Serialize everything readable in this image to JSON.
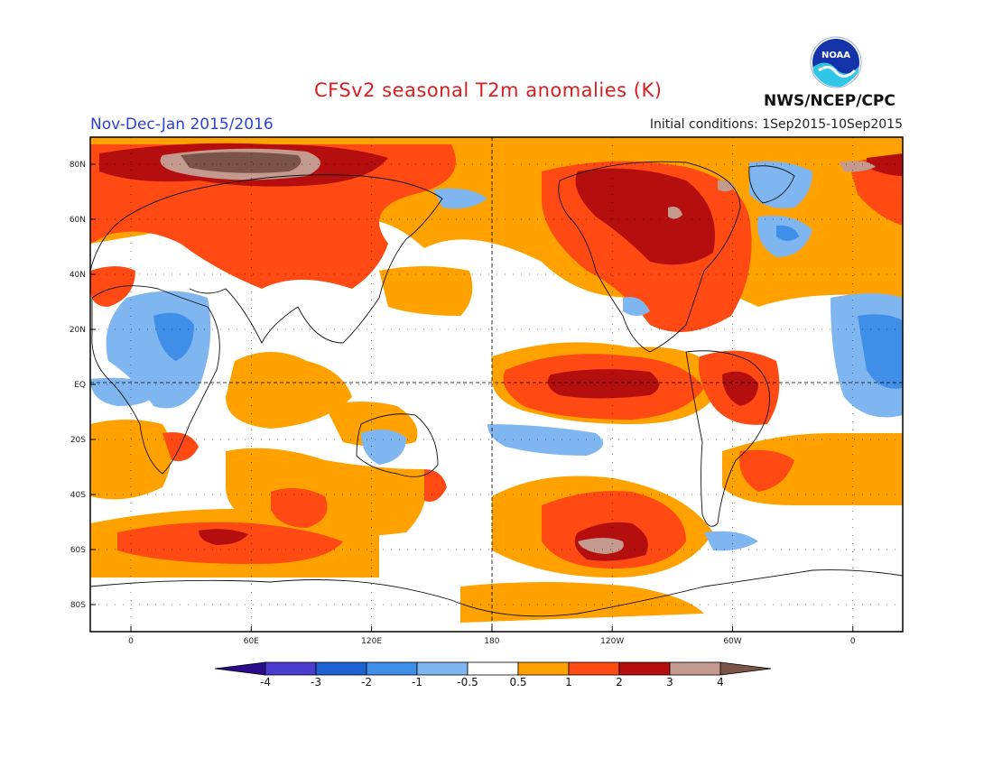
{
  "header": {
    "title": "CFSv2 seasonal T2m anomalies (K)",
    "period": "Nov-Dec-Jan 2015/2016",
    "initial_conditions": "Initial conditions: 1Sep2015-10Sep2015",
    "agency": "NWS/NCEP/CPC",
    "logo_text": "NOAA"
  },
  "map": {
    "lat_ticks": [
      "80N",
      "60N",
      "40N",
      "20N",
      "EQ",
      "20S",
      "40S",
      "60S",
      "80S"
    ],
    "lon_ticks": [
      "0",
      "60E",
      "120E",
      "180",
      "120W",
      "60W",
      "0"
    ]
  },
  "colorbar": {
    "labels": [
      "-4",
      "-3",
      "-2",
      "-1",
      "-0.5",
      "0.5",
      "1",
      "2",
      "3",
      "4"
    ],
    "colors": [
      "#2a0b8c",
      "#4a3dd0",
      "#1d62d0",
      "#3f8ee8",
      "#7fb6f0",
      "#ffffff",
      "#ffa200",
      "#ff4a14",
      "#b50e0e",
      "#c49a8e",
      "#7a5448"
    ]
  },
  "colors": {
    "title": "#d81e1e",
    "period": "#2a3fd8",
    "weak_warm": "#ffa200",
    "warm": "#ff4a14",
    "hot": "#b50e0e",
    "very_hot": "#c49a8e",
    "extreme": "#7a5448",
    "cool": "#7fb6f0",
    "cold": "#3f8ee8"
  }
}
